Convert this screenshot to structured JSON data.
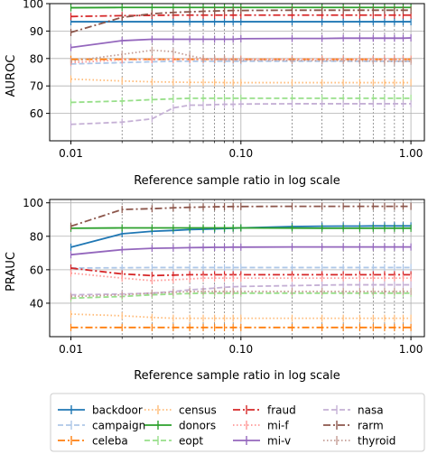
{
  "chart_data": [
    {
      "type": "line",
      "panel": "top",
      "xlabel": "Reference sample ratio in log scale",
      "ylabel": "AUROC",
      "xscale": "log",
      "xlim": [
        0.0075,
        1.2
      ],
      "ylim": [
        50,
        100
      ],
      "xticks": [
        0.01,
        0.1,
        1.0
      ],
      "xtick_labels": [
        "0.01",
        "0.10",
        "1.00"
      ],
      "yticks": [
        60,
        70,
        80,
        90,
        100
      ],
      "ytick_labels": [
        "60",
        "70",
        "80",
        "90",
        "100"
      ],
      "grid": true,
      "x": [
        0.01,
        0.02,
        0.03,
        0.04,
        0.05,
        0.06,
        0.07,
        0.08,
        0.09,
        0.1,
        0.2,
        0.3,
        0.4,
        0.5,
        0.6,
        0.7,
        0.8,
        0.9,
        1.0
      ],
      "series": [
        {
          "name": "backdoor",
          "values": [
            93.4,
            93.4,
            93.4,
            93.4,
            93.4,
            93.4,
            93.4,
            93.4,
            93.4,
            93.4,
            93.4,
            93.4,
            93.4,
            93.4,
            93.4,
            93.4,
            93.4,
            93.4,
            93.4
          ]
        },
        {
          "name": "campaign",
          "values": [
            78,
            78.5,
            78.8,
            79,
            79,
            79,
            79,
            79,
            79,
            79,
            79,
            79,
            79,
            79,
            79,
            79,
            79,
            79,
            79
          ]
        },
        {
          "name": "celeba",
          "values": [
            79.7,
            79.7,
            79.7,
            79.7,
            79.7,
            79.7,
            79.7,
            79.7,
            79.7,
            79.7,
            79.7,
            79.7,
            79.7,
            79.7,
            79.7,
            79.7,
            79.7,
            79.7,
            79.7
          ]
        },
        {
          "name": "census",
          "values": [
            72.5,
            71.8,
            71.5,
            71.4,
            71.3,
            71.3,
            71.3,
            71.2,
            71.2,
            71.2,
            71.2,
            71.2,
            71.2,
            71.2,
            71.2,
            71.2,
            71.2,
            71.2,
            71.2
          ]
        },
        {
          "name": "donors",
          "values": [
            98.5,
            98.6,
            98.6,
            98.6,
            98.6,
            98.6,
            98.6,
            98.6,
            98.6,
            98.6,
            98.6,
            98.6,
            98.6,
            98.6,
            98.6,
            98.6,
            98.6,
            98.6,
            98.6
          ]
        },
        {
          "name": "eopt",
          "values": [
            64,
            64.5,
            65,
            65.3,
            65.5,
            65.5,
            65.5,
            65.5,
            65.5,
            65.5,
            65.5,
            65.5,
            65.5,
            65.5,
            65.5,
            65.5,
            65.5,
            65.5,
            65.5
          ]
        },
        {
          "name": "fraud",
          "values": [
            95.3,
            95.6,
            95.7,
            95.8,
            95.8,
            95.8,
            95.8,
            95.8,
            95.8,
            95.8,
            95.8,
            95.8,
            95.8,
            95.8,
            95.8,
            95.8,
            95.8,
            95.8,
            95.8
          ]
        },
        {
          "name": "mi-f",
          "values": [
            78.5,
            79.5,
            79.6,
            79.7,
            79.7,
            79.7,
            79.7,
            79.7,
            79.7,
            79.7,
            79.7,
            79.7,
            79.7,
            79.7,
            79.7,
            79.7,
            79.7,
            79.7,
            79.7
          ]
        },
        {
          "name": "mi-v",
          "values": [
            84,
            86.5,
            87,
            87,
            87,
            87,
            87,
            87,
            87,
            87.2,
            87.3,
            87.3,
            87.4,
            87.4,
            87.4,
            87.4,
            87.4,
            87.4,
            87.5
          ]
        },
        {
          "name": "nasa",
          "values": [
            56,
            56.8,
            58,
            62,
            63,
            63,
            63.2,
            63.3,
            63.3,
            63.4,
            63.5,
            63.5,
            63.5,
            63.5,
            63.5,
            63.5,
            63.5,
            63.5,
            63.5
          ]
        },
        {
          "name": "rarm",
          "values": [
            89.5,
            95,
            96.3,
            96.8,
            97,
            97.2,
            97.3,
            97.4,
            97.5,
            97.5,
            97.6,
            97.6,
            97.6,
            97.6,
            97.6,
            97.6,
            97.6,
            97.6,
            97.6
          ]
        },
        {
          "name": "thyroid",
          "values": [
            79,
            81.5,
            83,
            82.5,
            81,
            80,
            79.8,
            79.6,
            79.5,
            79.4,
            79.3,
            79.2,
            79.2,
            79.1,
            79.1,
            79,
            79,
            79,
            79
          ]
        }
      ]
    },
    {
      "type": "line",
      "panel": "bottom",
      "xlabel": "Reference sample ratio in log scale",
      "ylabel": "PRAUC",
      "xscale": "log",
      "xlim": [
        0.0075,
        1.2
      ],
      "ylim": [
        20,
        102
      ],
      "xticks": [
        0.01,
        0.1,
        1.0
      ],
      "xtick_labels": [
        "0.01",
        "0.10",
        "1.00"
      ],
      "yticks": [
        40,
        60,
        80,
        100
      ],
      "ytick_labels": [
        "40",
        "60",
        "80",
        "100"
      ],
      "grid": true,
      "x": [
        0.01,
        0.02,
        0.03,
        0.04,
        0.05,
        0.06,
        0.07,
        0.08,
        0.09,
        0.1,
        0.2,
        0.3,
        0.4,
        0.5,
        0.6,
        0.7,
        0.8,
        0.9,
        1.0
      ],
      "series": [
        {
          "name": "backdoor",
          "values": [
            73.5,
            81.5,
            83,
            83.5,
            84,
            84.2,
            84.4,
            84.6,
            84.8,
            85,
            85.8,
            86,
            86.1,
            86.1,
            86.2,
            86.2,
            86.2,
            86.2,
            86.2
          ]
        },
        {
          "name": "campaign",
          "values": [
            61,
            61.2,
            61.3,
            61.3,
            61.3,
            61.3,
            61.3,
            61.3,
            61.3,
            61.3,
            61.3,
            61.3,
            61.3,
            61.3,
            61.3,
            61.3,
            61.3,
            61.3,
            61.3
          ]
        },
        {
          "name": "celeba",
          "values": [
            25.5,
            25.5,
            25.5,
            25.5,
            25.5,
            25.5,
            25.5,
            25.5,
            25.5,
            25.5,
            25.5,
            25.5,
            25.5,
            25.5,
            25.5,
            25.5,
            25.5,
            25.5,
            25.5
          ]
        },
        {
          "name": "census",
          "values": [
            33.5,
            32.5,
            31.5,
            31,
            31,
            31,
            31,
            31,
            31,
            31,
            31,
            31,
            31,
            31,
            31,
            31,
            31,
            31,
            31
          ]
        },
        {
          "name": "donors",
          "values": [
            84.8,
            85,
            85,
            85,
            85,
            85,
            85,
            85,
            85,
            85,
            84.9,
            84.8,
            84.8,
            84.8,
            84.8,
            84.8,
            84.8,
            84.8,
            84.8
          ]
        },
        {
          "name": "eopt",
          "values": [
            43,
            44,
            45,
            45.5,
            45.8,
            46,
            46,
            46,
            46,
            46,
            46,
            46,
            46,
            46,
            46,
            46,
            46,
            46,
            46
          ]
        },
        {
          "name": "fraud",
          "values": [
            61,
            57.5,
            56.5,
            56.8,
            57,
            57,
            57,
            57,
            57,
            57,
            57,
            57,
            57,
            57,
            57,
            57,
            57,
            57,
            57
          ]
        },
        {
          "name": "mi-f",
          "values": [
            58,
            55,
            53.5,
            54,
            54.5,
            55,
            55,
            55,
            55,
            55,
            55,
            55,
            55,
            55,
            55,
            55,
            55,
            55,
            55
          ]
        },
        {
          "name": "mi-v",
          "values": [
            69,
            72,
            72.8,
            73,
            73.2,
            73.3,
            73.4,
            73.4,
            73.5,
            73.5,
            73.6,
            73.6,
            73.6,
            73.6,
            73.6,
            73.6,
            73.6,
            73.6,
            73.6
          ]
        },
        {
          "name": "nasa",
          "values": [
            45,
            45.5,
            46,
            47,
            48,
            48.5,
            49,
            49.5,
            49.8,
            50,
            50.5,
            50.8,
            51,
            51,
            51,
            51,
            51,
            51,
            51
          ]
        },
        {
          "name": "rarm",
          "values": [
            86,
            96,
            96.5,
            97,
            97.3,
            97.5,
            97.6,
            97.7,
            97.8,
            97.8,
            97.9,
            97.9,
            97.9,
            97.9,
            97.9,
            97.9,
            97.9,
            97.9,
            97.9
          ]
        },
        {
          "name": "thyroid",
          "values": [
            44,
            45,
            46,
            46.5,
            47,
            47,
            47,
            47,
            47,
            47,
            47,
            47,
            47,
            47,
            47,
            47,
            47,
            47,
            47
          ]
        }
      ]
    }
  ],
  "series_styles": [
    {
      "name": "backdoor",
      "color": "#1f77b4",
      "dash": "solid"
    },
    {
      "name": "campaign",
      "color": "#aec7e8",
      "dash": "dashed"
    },
    {
      "name": "celeba",
      "color": "#ff7f0e",
      "dash": "dashdot"
    },
    {
      "name": "census",
      "color": "#ffbb78",
      "dash": "dotted"
    },
    {
      "name": "donors",
      "color": "#2ca02c",
      "dash": "solid"
    },
    {
      "name": "eopt",
      "color": "#98df8a",
      "dash": "dashed"
    },
    {
      "name": "fraud",
      "color": "#d62728",
      "dash": "dashdot"
    },
    {
      "name": "mi-f",
      "color": "#ff9896",
      "dash": "dotted"
    },
    {
      "name": "mi-v",
      "color": "#9467bd",
      "dash": "solid"
    },
    {
      "name": "nasa",
      "color": "#c5b0d5",
      "dash": "dashed"
    },
    {
      "name": "rarm",
      "color": "#8c564b",
      "dash": "dashdot"
    },
    {
      "name": "thyroid",
      "color": "#c49c94",
      "dash": "dotted"
    }
  ],
  "legend": {
    "placement": "bottom",
    "columns": 4,
    "entries": [
      "backdoor",
      "campaign",
      "celeba",
      "census",
      "donors",
      "eopt",
      "fraud",
      "mi-f",
      "mi-v",
      "nasa",
      "rarm",
      "thyroid"
    ]
  }
}
